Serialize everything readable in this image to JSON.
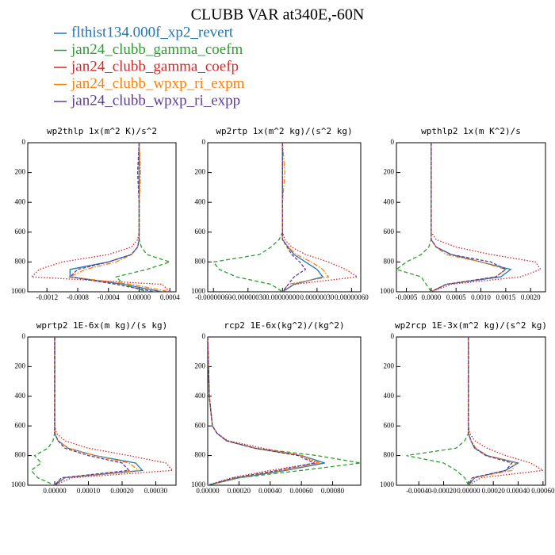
{
  "title": "CLUBB VAR at340E,-60N",
  "legend": [
    {
      "name": "flthist134.000f_xp2_revert",
      "color": "#1f77b4",
      "dash": "none"
    },
    {
      "name": "jan24_clubb_gamma_coefm",
      "color": "#2ca02c",
      "dash": "5,3"
    },
    {
      "name": "jan24_clubb_gamma_coefp",
      "color": "#d62728",
      "dash": "1.5,2"
    },
    {
      "name": "jan24_clubb_wpxp_ri_expm",
      "color": "#ff7f0e",
      "dash": "6,2,1.5,2"
    },
    {
      "name": "jan24_clubb_wpxp_ri_expp",
      "color": "#5e3c99",
      "dash": "4,2"
    }
  ],
  "chart_data": [
    {
      "type": "line",
      "title": "wp2thlp  1x(m^2 K)/s^2",
      "y_inverted": true,
      "y": [
        0,
        200,
        400,
        600,
        650,
        700,
        750,
        800,
        850,
        900,
        950,
        1000
      ],
      "ylim": [
        0,
        1000
      ],
      "yticks": [
        0,
        200,
        400,
        600,
        800,
        1000
      ],
      "xlim": [
        -0.00145,
        0.00048
      ],
      "xticks": [
        -0.0012,
        -0.0008,
        -0.0004,
        {
          "value": 0,
          "label": "0.00000"
        },
        0.0004
      ],
      "series": [
        {
          "values": [
            0,
            0,
            0,
            0,
            0,
            -2e-05,
            -0.0001,
            -0.0004,
            -0.0009,
            -0.0009,
            -0.0002,
            0.0003
          ]
        },
        {
          "values": [
            0,
            0,
            0,
            0,
            0,
            3e-05,
            0.0001,
            0.0004,
            0.0001,
            -0.0003,
            -0.0002,
            0.0001
          ]
        },
        {
          "values": [
            0,
            0,
            0,
            0,
            -2e-05,
            -0.0001,
            -0.0004,
            -0.001,
            -0.0013,
            -0.0014,
            0.0003,
            0.0004
          ]
        },
        {
          "values": [
            0,
            2e-05,
            0,
            0,
            0,
            -2e-05,
            -0.0001,
            -0.0003,
            -0.0007,
            -0.0009,
            -0.0001,
            0.0004
          ]
        },
        {
          "values": [
            0,
            -2e-05,
            0,
            0,
            0,
            -2e-05,
            -0.0001,
            -0.0004,
            -0.0008,
            -0.0009,
            -0.0003,
            0.0002
          ]
        }
      ]
    },
    {
      "type": "line",
      "title": "wp2rtp  1x(m^2 kg)/(s^2 kg)",
      "y_inverted": true,
      "y": [
        0,
        200,
        400,
        600,
        650,
        700,
        750,
        800,
        850,
        900,
        950,
        1000
      ],
      "ylim": [
        0,
        1000
      ],
      "yticks": [
        0,
        200,
        400,
        600,
        800,
        1000
      ],
      "xlim": [
        -6.5e-07,
        6.8e-07
      ],
      "xticks": [
        {
          "value": -6e-07,
          "label": "-0.00000060"
        },
        {
          "value": -3e-07,
          "label": "-0.00000030"
        },
        {
          "value": 0,
          "label": "0.00000000"
        },
        {
          "value": 3e-07,
          "label": "0.00000030"
        },
        {
          "value": 6e-07,
          "label": "0.00000060"
        }
      ],
      "series": [
        {
          "values": [
            0,
            0,
            0,
            0,
            0,
            5e-08,
            1e-07,
            2e-07,
            3e-07,
            3.5e-07,
            1e-07,
            0
          ]
        },
        {
          "values": [
            0,
            0,
            0,
            0,
            -3e-08,
            -1e-07,
            -2e-07,
            -6e-07,
            -5.5e-07,
            -4e-07,
            -1e-07,
            0
          ]
        },
        {
          "values": [
            0,
            0,
            0,
            0,
            2e-08,
            8e-08,
            2e-07,
            4e-07,
            5.5e-07,
            6.5e-07,
            1e-07,
            0
          ]
        },
        {
          "values": [
            0,
            2e-08,
            0,
            0,
            0,
            5e-08,
            1.2e-07,
            2.5e-07,
            3.5e-07,
            4e-07,
            5e-08,
            0
          ]
        },
        {
          "values": [
            0,
            0,
            0,
            0,
            0,
            4e-08,
            8e-08,
            1.5e-07,
            2e-07,
            1e-07,
            5e-08,
            0
          ]
        }
      ]
    },
    {
      "type": "line",
      "title": "wpthlp2  1x(m K^2)/s",
      "y_inverted": true,
      "y": [
        0,
        200,
        400,
        600,
        650,
        700,
        750,
        800,
        850,
        900,
        950,
        1000
      ],
      "ylim": [
        0,
        1000
      ],
      "yticks": [
        0,
        200,
        400,
        600,
        800,
        1000
      ],
      "xlim": [
        -0.0007,
        0.0023
      ],
      "xticks": [
        -0.0005,
        {
          "value": 0,
          "label": "0.0000"
        },
        0.0005,
        {
          "value": 0.001,
          "label": "0.0010"
        },
        0.0015,
        {
          "value": 0.002,
          "label": "0.0020"
        }
      ],
      "series": [
        {
          "values": [
            0,
            0,
            0,
            0,
            0,
            0.0001,
            0.0004,
            0.001,
            0.0016,
            0.0014,
            0.0003,
            0
          ]
        },
        {
          "values": [
            0,
            0,
            0,
            0,
            0,
            -5e-05,
            -0.0002,
            -0.0005,
            -0.0007,
            -0.0002,
            -0.0001,
            0
          ]
        },
        {
          "values": [
            0,
            0,
            0,
            0,
            0.0001,
            0.0005,
            0.0012,
            0.0021,
            0.0022,
            0.0018,
            0.0004,
            0
          ]
        },
        {
          "values": [
            0,
            0,
            0,
            0,
            0,
            0.0001,
            0.0003,
            0.001,
            0.0015,
            0.0013,
            0.0003,
            0
          ]
        },
        {
          "values": [
            0,
            0,
            0,
            0,
            0,
            0.0001,
            0.0004,
            0.0012,
            0.0015,
            0.0013,
            0.0003,
            0
          ]
        }
      ]
    },
    {
      "type": "line",
      "title": "wprtp2  1E-6x(m kg)/(s kg)",
      "y_inverted": true,
      "y": [
        0,
        200,
        400,
        600,
        650,
        700,
        750,
        800,
        850,
        900,
        950,
        1000
      ],
      "ylim": [
        0,
        1000
      ],
      "yticks": [
        0,
        200,
        400,
        600,
        800,
        1000
      ],
      "xlim": [
        -8e-05,
        0.00036
      ],
      "xticks": [
        {
          "value": 0,
          "label": "0.00000"
        },
        {
          "value": 0.0001,
          "label": "0.00010"
        },
        {
          "value": 0.0002,
          "label": "0.00020"
        },
        {
          "value": 0.0003,
          "label": "0.00030"
        }
      ],
      "series": [
        {
          "values": [
            0,
            0,
            0,
            0,
            0,
            1e-05,
            4e-05,
            0.00012,
            0.00024,
            0.00026,
            3e-05,
            0
          ]
        },
        {
          "values": [
            0,
            0,
            0,
            0,
            0,
            -5e-06,
            -2e-05,
            -6e-05,
            -4e-05,
            -7e-05,
            -5e-05,
            0
          ]
        },
        {
          "values": [
            0,
            0,
            0,
            0,
            5e-06,
            3e-05,
            0.0001,
            0.00022,
            0.00033,
            0.00035,
            5e-05,
            0
          ]
        },
        {
          "values": [
            0,
            0,
            0,
            0,
            0,
            1e-05,
            4e-05,
            0.00012,
            0.00022,
            0.00025,
            2e-05,
            0
          ]
        },
        {
          "values": [
            0,
            0,
            0,
            0,
            0,
            1e-05,
            3e-05,
            0.0001,
            0.0002,
            0.00022,
            2e-05,
            0
          ]
        }
      ]
    },
    {
      "type": "line",
      "title": "rcp2  1E-6x(kg^2)/(kg^2)",
      "y_inverted": true,
      "y": [
        0,
        200,
        400,
        600,
        650,
        700,
        750,
        800,
        850,
        900,
        950,
        1000
      ],
      "ylim": [
        0,
        1000
      ],
      "yticks": [
        0,
        200,
        400,
        600,
        800,
        1000
      ],
      "xlim": [
        0,
        0.00098
      ],
      "xticks": [
        {
          "value": 0,
          "label": "0.00000"
        },
        {
          "value": 0.0002,
          "label": "0.00020"
        },
        {
          "value": 0.0004,
          "label": "0.00040"
        },
        {
          "value": 0.0006,
          "label": "0.00060"
        },
        {
          "value": 0.0008,
          "label": "0.00080"
        }
      ],
      "series": [
        {
          "values": [
            0,
            5e-06,
            1e-05,
            3e-05,
            6e-05,
            0.00012,
            0.0003,
            0.0006,
            0.00075,
            0.0005,
            0.0002,
            0
          ]
        },
        {
          "values": [
            0,
            5e-06,
            1e-05,
            3e-05,
            6e-05,
            0.00012,
            0.0003,
            0.0007,
            0.00098,
            0.0006,
            0.0002,
            0
          ]
        },
        {
          "values": [
            0,
            5e-06,
            1e-05,
            3e-05,
            6e-05,
            0.00013,
            0.00035,
            0.0006,
            0.0007,
            0.0004,
            0.00015,
            0
          ]
        },
        {
          "values": [
            0,
            5e-06,
            1e-05,
            3e-05,
            6e-05,
            0.00012,
            0.0003,
            0.0006,
            0.00072,
            0.00048,
            0.00018,
            0
          ]
        },
        {
          "values": [
            0,
            5e-06,
            1e-05,
            3e-05,
            6e-05,
            0.00012,
            0.0003,
            0.00058,
            0.00068,
            0.00045,
            0.00017,
            0
          ]
        }
      ]
    },
    {
      "type": "line",
      "title": "wp2rcp  1E-3x(m^2 kg)/(s^2 kg)",
      "y_inverted": true,
      "y": [
        0,
        200,
        400,
        600,
        650,
        700,
        750,
        800,
        850,
        900,
        950,
        1000
      ],
      "ylim": [
        0,
        1000
      ],
      "yticks": [
        0,
        200,
        400,
        600,
        800,
        1000
      ],
      "xlim": [
        -0.00058,
        0.00062
      ],
      "xticks": [
        {
          "value": -0.0004,
          "label": "-0.00040"
        },
        {
          "value": -0.0002,
          "label": "-0.00020"
        },
        {
          "value": 0,
          "label": "0.00000"
        },
        {
          "value": 0.0002,
          "label": "0.00020"
        },
        {
          "value": 0.0004,
          "label": "0.00040"
        },
        {
          "value": 0.0006,
          "label": "0.00060"
        }
      ],
      "series": [
        {
          "values": [
            0,
            0,
            0,
            0,
            0,
            2e-05,
            5e-05,
            0.00015,
            0.0004,
            0.0003,
            5e-05,
            0
          ]
        },
        {
          "values": [
            0,
            0,
            0,
            0,
            0,
            -3e-05,
            -0.0001,
            -0.0005,
            -0.0002,
            -0.0001,
            -3e-05,
            0
          ]
        },
        {
          "values": [
            0,
            0,
            0,
            0,
            1e-05,
            5e-05,
            0.00015,
            0.0003,
            0.0005,
            0.0006,
            0.0001,
            0
          ]
        },
        {
          "values": [
            0,
            0,
            0,
            0,
            0,
            2e-05,
            6e-05,
            0.00015,
            0.00038,
            0.00035,
            3e-05,
            0
          ]
        },
        {
          "values": [
            0,
            0,
            0,
            0,
            0,
            2e-05,
            5e-05,
            0.00014,
            0.00035,
            0.0003,
            3e-05,
            0
          ]
        }
      ]
    }
  ]
}
